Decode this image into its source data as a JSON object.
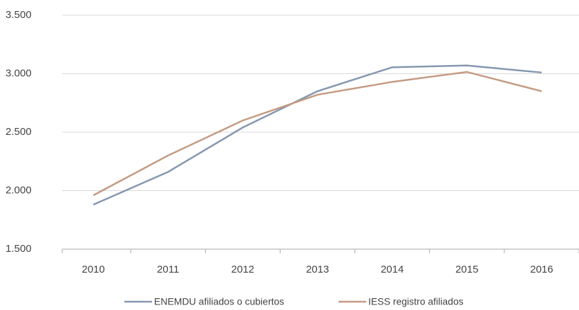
{
  "chart_data": {
    "type": "line",
    "categories": [
      "2010",
      "2011",
      "2012",
      "2013",
      "2014",
      "2015",
      "2016"
    ],
    "series": [
      {
        "name": "ENEMDU afiliados o cubiertos",
        "color": "#8497b0",
        "values": [
          1880,
          2160,
          2540,
          2850,
          3055,
          3070,
          3010
        ]
      },
      {
        "name": "IESS registro afiliados",
        "color": "#c49a82",
        "values": [
          1960,
          2300,
          2600,
          2820,
          2930,
          3015,
          2850
        ]
      }
    ],
    "ylim": [
      1500,
      3500
    ],
    "yticks": [
      {
        "value": 1500,
        "label": "1.500"
      },
      {
        "value": 2000,
        "label": "2.000"
      },
      {
        "value": 2500,
        "label": "2.500"
      },
      {
        "value": 3000,
        "label": "3.000"
      },
      {
        "value": 3500,
        "label": "3.500"
      }
    ],
    "grid": true
  }
}
